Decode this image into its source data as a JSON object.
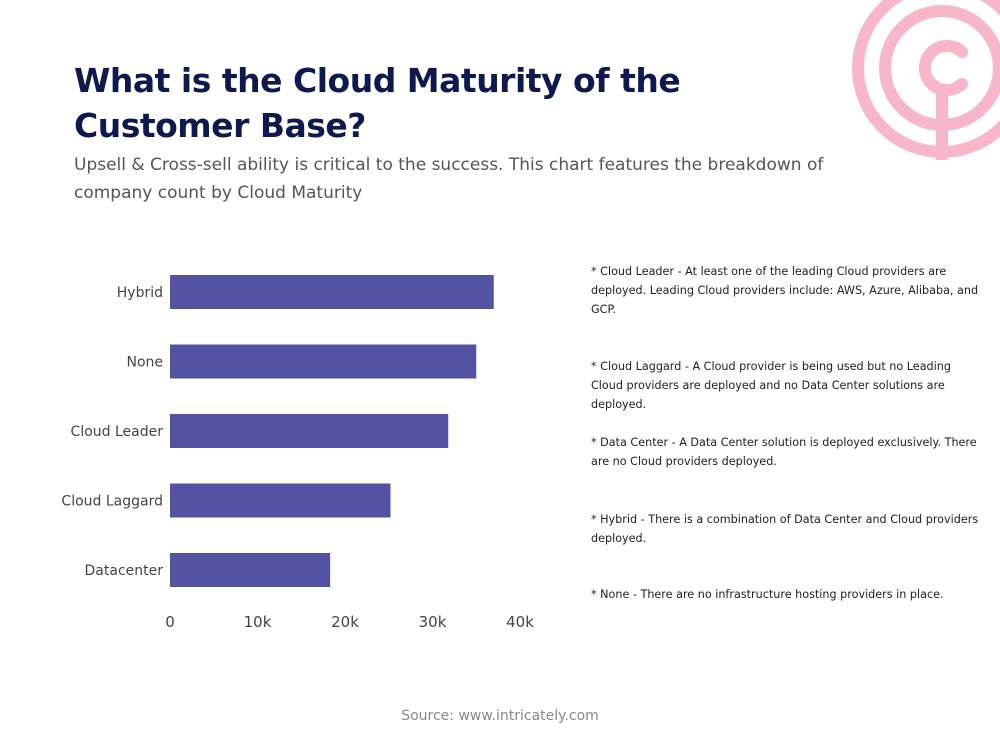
{
  "header": {
    "title": "What is the Cloud Maturity of the Customer Base?",
    "subtitle": "Upsell & Cross-sell ability is critical to the success. This chart features the breakdown of company count by Cloud Maturity"
  },
  "colors": {
    "bar": "#5352a3",
    "title": "#0e1a4f",
    "logo": "#f7b7c8"
  },
  "logo_icon": "intricately-logo-icon",
  "chart_data": {
    "type": "bar",
    "orientation": "horizontal",
    "categories": [
      "Hybrid",
      "None",
      "Cloud Leader",
      "Cloud Laggard",
      "Datacenter"
    ],
    "values": [
      37000,
      35000,
      31800,
      25200,
      18300
    ],
    "xticks": [
      "0",
      "10k",
      "20k",
      "30k",
      "40k"
    ],
    "xlim": [
      0,
      40000
    ],
    "grid": false,
    "title": "",
    "xlabel": "",
    "ylabel": ""
  },
  "notes": [
    "* Cloud Leader - At least one of the leading Cloud providers are deployed. Leading Cloud providers include: AWS, Azure, Alibaba, and GCP.",
    "* Cloud Laggard - A Cloud provider is being used but no Leading Cloud providers are deployed and no Data Center solutions are deployed.",
    "* Data Center - A Data Center solution is deployed exclusively. There are no Cloud providers deployed.",
    "* Hybrid - There is a combination of Data Center and Cloud providers deployed.",
    "* None - There are no infrastructure hosting providers in place."
  ],
  "footer": {
    "source": "Source: www.intricately.com"
  }
}
